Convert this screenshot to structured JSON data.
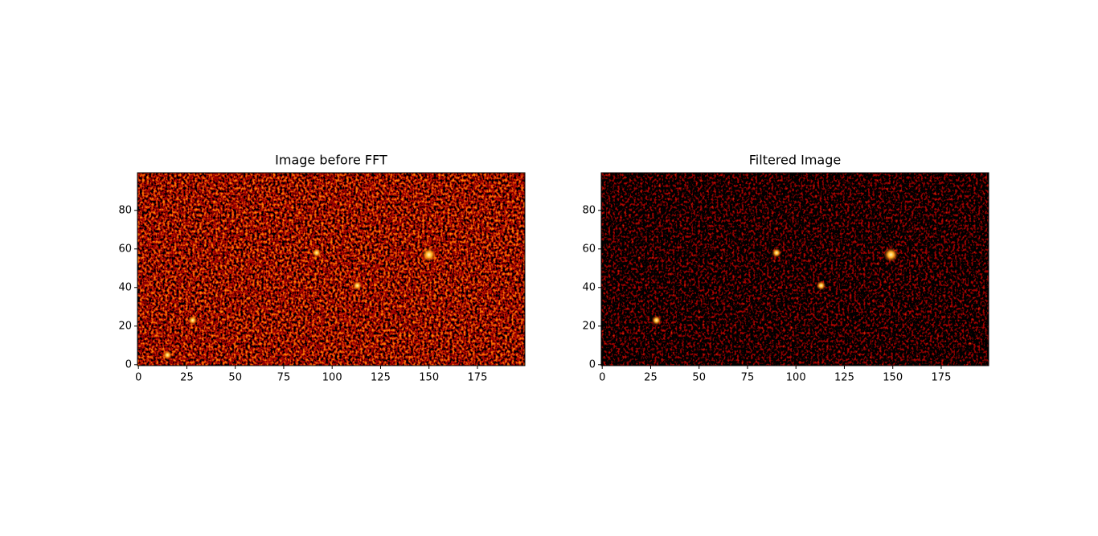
{
  "chart_data": [
    {
      "type": "image",
      "title": "Image before FFT",
      "colormap": "afmhot",
      "brightness": 1.0,
      "xlim": [
        -0.5,
        199.5
      ],
      "ylim": [
        -0.5,
        99.5
      ],
      "xticks": [
        0,
        25,
        50,
        75,
        100,
        125,
        150,
        175
      ],
      "yticks": [
        0,
        20,
        40,
        60,
        80
      ],
      "spots": {
        "x": [
          150,
          28,
          113,
          15,
          92
        ],
        "y": [
          57,
          23,
          41,
          5,
          58
        ]
      }
    },
    {
      "type": "image",
      "title": "Filtered Image",
      "colormap": "afmhot",
      "brightness": 0.7,
      "xlim": [
        -0.5,
        199.5
      ],
      "ylim": [
        -0.5,
        99.5
      ],
      "xticks": [
        0,
        25,
        50,
        75,
        100,
        125,
        150,
        175
      ],
      "yticks": [
        0,
        20,
        40,
        60,
        80
      ],
      "spots": {
        "x": [
          149,
          28,
          113,
          90
        ],
        "y": [
          57,
          23,
          41,
          58
        ]
      }
    }
  ]
}
